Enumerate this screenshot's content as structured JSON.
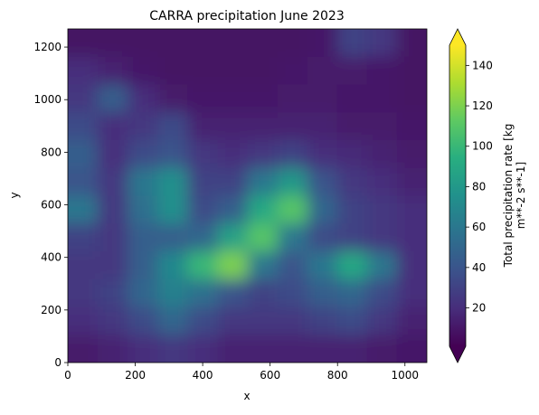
{
  "chart_data": {
    "type": "heatmap",
    "title": "CARRA precipitation June 2023",
    "x_label": "x",
    "y_label": "y",
    "xlim": [
      0,
      1065
    ],
    "ylim": [
      0,
      1269
    ],
    "xticks": [
      0,
      200,
      400,
      600,
      800,
      1000
    ],
    "yticks": [
      0,
      200,
      400,
      600,
      800,
      1000,
      1200
    ],
    "z": [
      [
        8,
        8,
        8,
        8,
        8,
        8,
        8,
        8,
        10,
        30,
        25,
        8
      ],
      [
        20,
        15,
        10,
        8,
        8,
        8,
        8,
        10,
        12,
        12,
        10,
        8
      ],
      [
        25,
        45,
        20,
        12,
        10,
        10,
        10,
        12,
        12,
        10,
        10,
        8
      ],
      [
        35,
        20,
        25,
        35,
        15,
        15,
        15,
        15,
        15,
        12,
        12,
        10
      ],
      [
        45,
        20,
        35,
        40,
        25,
        20,
        25,
        30,
        20,
        18,
        15,
        12
      ],
      [
        40,
        25,
        60,
        75,
        30,
        30,
        60,
        80,
        40,
        25,
        20,
        15
      ],
      [
        60,
        25,
        55,
        75,
        35,
        45,
        90,
        110,
        50,
        30,
        25,
        20
      ],
      [
        30,
        25,
        45,
        45,
        50,
        85,
        110,
        60,
        35,
        30,
        25,
        20
      ],
      [
        25,
        25,
        45,
        70,
        100,
        120,
        60,
        40,
        60,
        90,
        60,
        20
      ],
      [
        25,
        30,
        50,
        65,
        55,
        40,
        30,
        35,
        45,
        50,
        35,
        20
      ],
      [
        20,
        25,
        35,
        50,
        35,
        25,
        25,
        25,
        30,
        35,
        25,
        15
      ],
      [
        12,
        15,
        20,
        25,
        20,
        15,
        15,
        15,
        15,
        15,
        12,
        10
      ]
    ],
    "colorbar": {
      "label": [
        "Total precipitation rate [kg",
        "m**-2 s**-1]"
      ],
      "lim": [
        1,
        150
      ],
      "ticks": [
        20,
        40,
        60,
        80,
        100,
        120,
        140
      ],
      "colors": [
        "#440154",
        "#472d7b",
        "#3b528b",
        "#2c728e",
        "#21918c",
        "#28ae80",
        "#5ec962",
        "#addc30",
        "#fde725"
      ],
      "extend": "both"
    }
  }
}
